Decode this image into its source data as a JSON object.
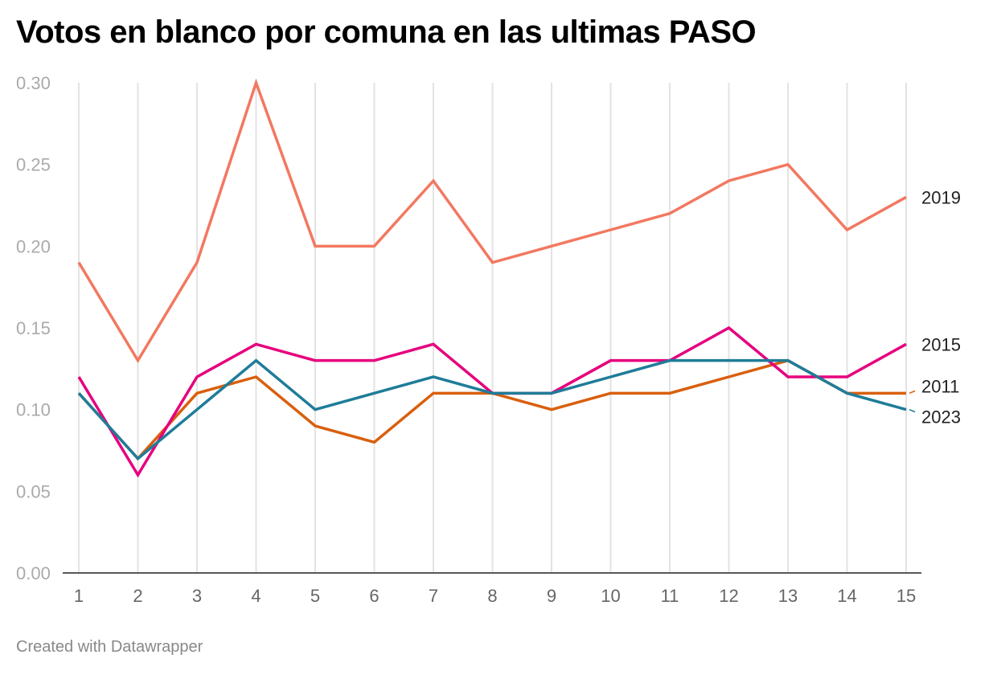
{
  "chart_data": {
    "type": "line",
    "title": "Votos en blanco por comuna en las ultimas PASO",
    "xlabel": "",
    "ylabel": "",
    "x": [
      1,
      2,
      3,
      4,
      5,
      6,
      7,
      8,
      9,
      10,
      11,
      12,
      13,
      14,
      15
    ],
    "ylim": [
      0,
      0.3
    ],
    "yticks": [
      "0.00",
      "0.05",
      "0.10",
      "0.15",
      "0.20",
      "0.25",
      "0.30"
    ],
    "grid": "vertical",
    "legend": "direct-labels-right",
    "series": [
      {
        "name": "2011",
        "color": "#d95f0e",
        "values": [
          0.11,
          0.07,
          0.11,
          0.12,
          0.09,
          0.08,
          0.11,
          0.11,
          0.1,
          0.11,
          0.11,
          0.12,
          0.13,
          0.11,
          0.11
        ]
      },
      {
        "name": "2015",
        "color": "#e6007e",
        "values": [
          0.12,
          0.06,
          0.12,
          0.14,
          0.13,
          0.13,
          0.14,
          0.11,
          0.11,
          0.13,
          0.13,
          0.15,
          0.12,
          0.12,
          0.14
        ]
      },
      {
        "name": "2019",
        "color": "#f27860",
        "values": [
          0.19,
          0.13,
          0.19,
          0.3,
          0.2,
          0.2,
          0.24,
          0.19,
          0.2,
          0.21,
          0.22,
          0.24,
          0.25,
          0.21,
          0.23
        ]
      },
      {
        "name": "2023",
        "color": "#1f7c99",
        "values": [
          0.11,
          0.07,
          0.1,
          0.13,
          0.1,
          0.11,
          0.12,
          0.11,
          0.11,
          0.12,
          0.13,
          0.13,
          0.13,
          0.11,
          0.1
        ]
      }
    ]
  },
  "footer": {
    "credit": "Created with Datawrapper"
  }
}
